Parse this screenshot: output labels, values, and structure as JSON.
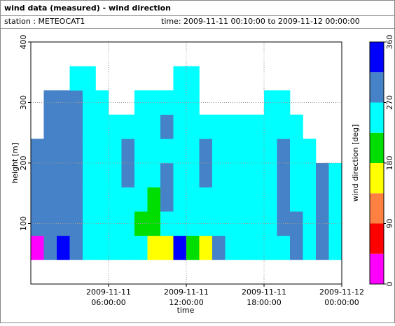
{
  "chart_data": {
    "type": "heatmap",
    "title": "wind data (measured) - wind direction",
    "station": "station : METEOCAT1",
    "time": "time: 2009-11-11 00:10:00 to 2009-11-12 00:00:00",
    "xlabel": "time",
    "ylabel": "height [m]",
    "xlim": [
      "2009-11-11T00:00:00",
      "2009-11-12T00:00:00"
    ],
    "xticks": [
      {
        "value": "2009-11-11T06:00:00",
        "label": [
          "2009-11-11",
          "06:00:00"
        ]
      },
      {
        "value": "2009-11-11T12:00:00",
        "label": [
          "2009-11-11",
          "12:00:00"
        ]
      },
      {
        "value": "2009-11-11T18:00:00",
        "label": [
          "2009-11-11",
          "18:00:00"
        ]
      },
      {
        "value": "2009-11-12T00:00:00",
        "label": [
          "2009-11-12",
          "00:00:00"
        ]
      }
    ],
    "ylim": [
      0,
      400
    ],
    "yticks": [
      100,
      200,
      300,
      400
    ],
    "grid": true,
    "xbins": [
      "2009-11-11T00:00:00",
      "2009-11-11T01:00:00",
      "2009-11-11T02:00:00",
      "2009-11-11T03:00:00",
      "2009-11-11T04:00:00",
      "2009-11-11T05:00:00",
      "2009-11-11T06:00:00",
      "2009-11-11T07:00:00",
      "2009-11-11T08:00:00",
      "2009-11-11T09:00:00",
      "2009-11-11T10:00:00",
      "2009-11-11T11:00:00",
      "2009-11-11T12:00:00",
      "2009-11-11T13:00:00",
      "2009-11-11T14:00:00",
      "2009-11-11T15:00:00",
      "2009-11-11T16:00:00",
      "2009-11-11T17:00:00",
      "2009-11-11T18:00:00",
      "2009-11-11T19:00:00",
      "2009-11-11T20:00:00",
      "2009-11-11T21:00:00",
      "2009-11-11T22:00:00",
      "2009-11-11T23:00:00",
      "2009-11-12T00:00:00"
    ],
    "ybins": [
      40,
      80,
      120,
      160,
      200,
      240,
      280,
      320,
      360
    ],
    "z": [
      [
        20,
        290,
        330,
        290,
        250,
        250,
        250,
        250,
        250,
        160,
        160,
        330,
        200,
        160,
        290,
        250,
        250,
        250,
        250,
        250,
        290,
        250,
        290,
        250
      ],
      [
        290,
        290,
        290,
        290,
        250,
        250,
        250,
        250,
        200,
        200,
        250,
        250,
        250,
        250,
        250,
        250,
        250,
        250,
        250,
        290,
        290,
        250,
        290,
        250
      ],
      [
        290,
        290,
        290,
        290,
        250,
        250,
        250,
        250,
        250,
        200,
        290,
        250,
        250,
        250,
        250,
        250,
        250,
        250,
        250,
        290,
        250,
        250,
        290,
        250
      ],
      [
        290,
        290,
        290,
        290,
        250,
        250,
        250,
        290,
        250,
        250,
        290,
        250,
        250,
        290,
        250,
        250,
        250,
        250,
        250,
        290,
        250,
        250,
        290,
        250
      ],
      [
        290,
        290,
        290,
        290,
        250,
        250,
        250,
        290,
        250,
        250,
        250,
        250,
        250,
        290,
        250,
        250,
        250,
        250,
        250,
        290,
        250,
        250,
        null,
        null
      ],
      [
        null,
        290,
        290,
        290,
        250,
        250,
        250,
        250,
        250,
        250,
        290,
        250,
        250,
        250,
        250,
        250,
        250,
        250,
        250,
        250,
        250,
        null,
        null,
        null
      ],
      [
        null,
        290,
        290,
        290,
        250,
        250,
        null,
        null,
        250,
        250,
        250,
        250,
        250,
        null,
        null,
        null,
        null,
        null,
        250,
        250,
        null,
        null,
        null,
        null
      ],
      [
        null,
        null,
        null,
        250,
        250,
        null,
        null,
        null,
        null,
        null,
        null,
        250,
        250,
        null,
        null,
        null,
        null,
        null,
        null,
        null,
        null,
        null,
        null,
        null
      ]
    ],
    "colorbar": {
      "label": "wind direction [deg]",
      "bounds": [
        0,
        45,
        90,
        135,
        180,
        225,
        270,
        315,
        360
      ],
      "colors": [
        "#ff00ff",
        "#ff0000",
        "#ff8040",
        "#ffff00",
        "#00dd00",
        "#00ffff",
        "#4682c8",
        "#0000ff"
      ],
      "ticks": [
        0,
        90,
        180,
        270,
        360
      ]
    }
  }
}
